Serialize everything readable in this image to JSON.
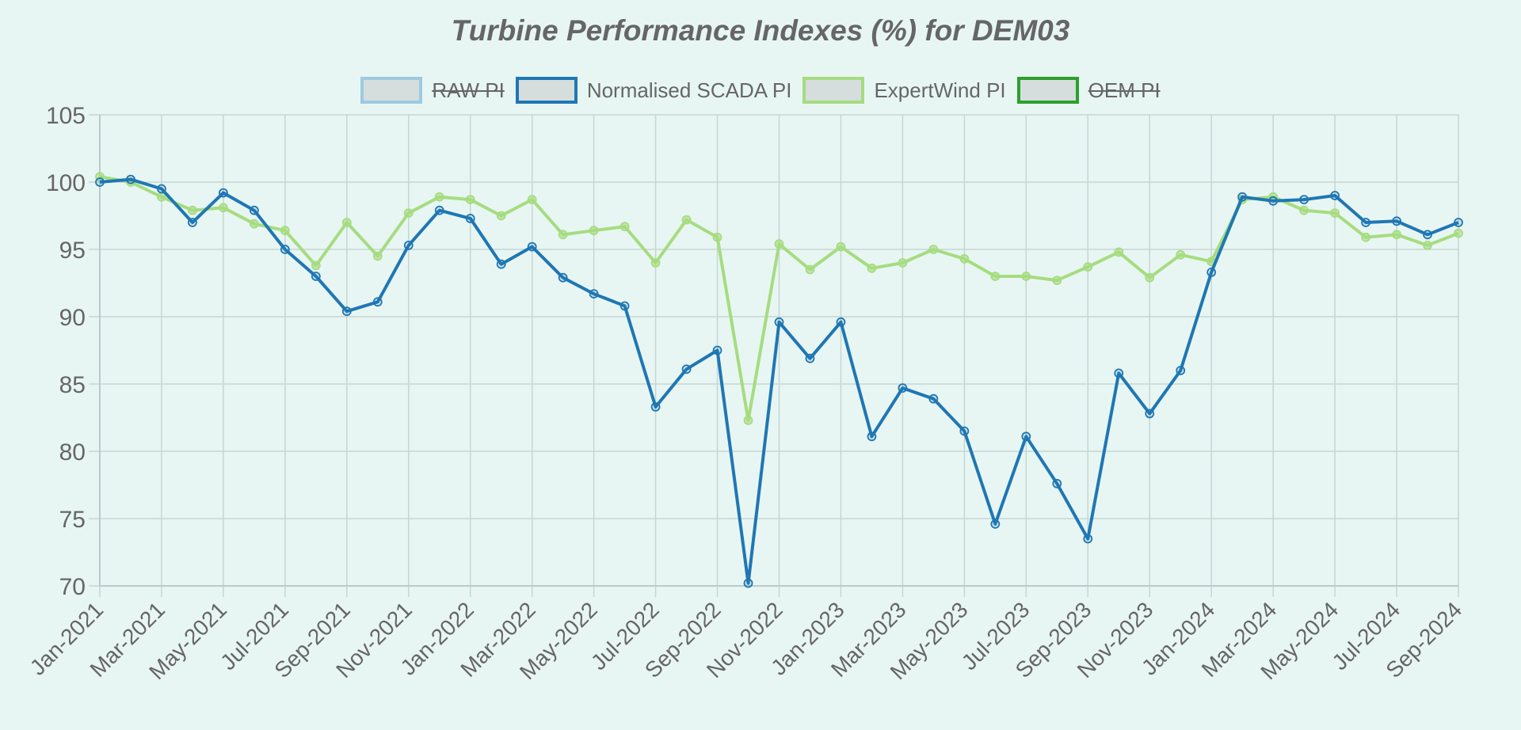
{
  "chart_data": {
    "type": "line",
    "title": "Turbine Performance Indexes (%) for DEM03",
    "xlabel": "",
    "ylabel": "",
    "ylim": [
      70,
      105
    ],
    "yticks": [
      "105",
      "100",
      "95",
      "90",
      "85",
      "80",
      "75",
      "70"
    ],
    "grid": true,
    "legend_position": "top",
    "x": [
      "Jan-2021",
      "Feb-2021",
      "Mar-2021",
      "Apr-2021",
      "May-2021",
      "Jun-2021",
      "Jul-2021",
      "Aug-2021",
      "Sep-2021",
      "Oct-2021",
      "Nov-2021",
      "Dec-2021",
      "Jan-2022",
      "Feb-2022",
      "Mar-2022",
      "Apr-2022",
      "May-2022",
      "Jun-2022",
      "Jul-2022",
      "Aug-2022",
      "Sep-2022",
      "Oct-2022",
      "Nov-2022",
      "Dec-2022",
      "Jan-2023",
      "Feb-2023",
      "Mar-2023",
      "Apr-2023",
      "May-2023",
      "Jun-2023",
      "Jul-2023",
      "Aug-2023",
      "Sep-2023",
      "Oct-2023",
      "Nov-2023",
      "Dec-2023",
      "Jan-2024",
      "Feb-2024",
      "Mar-2024",
      "Apr-2024",
      "May-2024",
      "Jun-2024",
      "Jul-2024",
      "Aug-2024",
      "Sep-2024"
    ],
    "xtick_labels": [
      "Jan-2021",
      "Mar-2021",
      "May-2021",
      "Jul-2021",
      "Sep-2021",
      "Nov-2021",
      "Jan-2022",
      "Mar-2022",
      "May-2022",
      "Jul-2022",
      "Sep-2022",
      "Nov-2022",
      "Jan-2023",
      "Mar-2023",
      "May-2023",
      "Jul-2023",
      "Sep-2023",
      "Nov-2023",
      "Jan-2024",
      "Mar-2024",
      "May-2024",
      "Jul-2024",
      "Sep-2024"
    ],
    "series": [
      {
        "name": "RAW PI",
        "color": "#9ecae1",
        "hidden": true,
        "values": []
      },
      {
        "name": "Normalised SCADA PI",
        "color": "#1f77b4",
        "hidden": false,
        "values": [
          100.0,
          100.2,
          99.5,
          97.0,
          99.2,
          97.9,
          95.0,
          93.0,
          90.4,
          91.1,
          95.3,
          97.9,
          97.3,
          93.9,
          95.2,
          92.9,
          91.7,
          90.8,
          83.3,
          86.1,
          87.5,
          70.2,
          89.6,
          86.9,
          89.6,
          81.1,
          84.7,
          83.9,
          81.5,
          74.6,
          81.1,
          77.6,
          73.5,
          85.8,
          82.8,
          86.0,
          93.3,
          98.9,
          98.6,
          98.7,
          99.0,
          97.0,
          97.1,
          96.1,
          97.0
        ]
      },
      {
        "name": "ExpertWind PI",
        "color": "#a6dc80",
        "hidden": false,
        "values": [
          100.4,
          100.0,
          98.9,
          97.9,
          98.1,
          96.9,
          96.4,
          93.8,
          97.0,
          94.5,
          97.7,
          98.9,
          98.7,
          97.5,
          98.7,
          96.1,
          96.4,
          96.7,
          94.0,
          97.2,
          95.9,
          82.3,
          95.4,
          93.5,
          95.2,
          93.6,
          94.0,
          95.0,
          94.3,
          93.0,
          93.0,
          92.7,
          93.7,
          94.8,
          92.9,
          94.6,
          94.1,
          98.7,
          98.9,
          97.9,
          97.7,
          95.9,
          96.1,
          95.3,
          96.2
        ]
      },
      {
        "name": "OEM PI",
        "color": "#2ca02c",
        "hidden": true,
        "values": []
      }
    ]
  },
  "legend": [
    {
      "label": "RAW PI",
      "border": "#9ecae1",
      "hidden": true
    },
    {
      "label": "Normalised SCADA PI",
      "border": "#1f77b4",
      "hidden": false
    },
    {
      "label": "ExpertWind PI",
      "border": "#a6dc80",
      "hidden": false
    },
    {
      "label": "OEM PI",
      "border": "#2ca02c",
      "hidden": true
    }
  ]
}
